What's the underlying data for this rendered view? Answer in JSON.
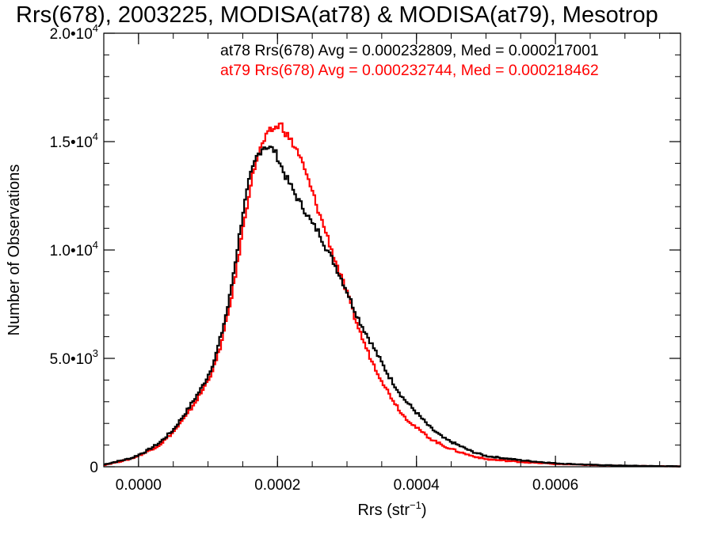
{
  "chart_data": {
    "type": "line",
    "step": true,
    "title": "Rrs(678), 2003225, MODISA(at78) & MODISA(at79), Mesotrop",
    "xlabel": {
      "base": "Rrs (str",
      "sup": "−1",
      "close": ")"
    },
    "ylabel": "Number of Observations",
    "xlim": [
      -5e-05,
      0.00078
    ],
    "ylim": [
      0,
      20000
    ],
    "grid": false,
    "legend_position": "top-right",
    "x_ticks": [
      {
        "value": 0.0,
        "label": "0.0000"
      },
      {
        "value": 0.0002,
        "label": "0.0002"
      },
      {
        "value": 0.0004,
        "label": "0.0004"
      },
      {
        "value": 0.0006,
        "label": "0.0006"
      }
    ],
    "y_ticks": [
      {
        "value": 0,
        "label": "0",
        "base": "",
        "exp": ""
      },
      {
        "value": 5000,
        "label": "",
        "base": "5.0•10",
        "exp": "3"
      },
      {
        "value": 10000,
        "label": "",
        "base": "1.0•10",
        "exp": "4"
      },
      {
        "value": 15000,
        "label": "",
        "base": "1.5•10",
        "exp": "4"
      },
      {
        "value": 20000,
        "label": "",
        "base": "2.0•10",
        "exp": "4"
      }
    ],
    "annotations": [
      {
        "text": "at78 Rrs(678) Avg = 0.000232809, Med = 0.000217001",
        "color": "#000000"
      },
      {
        "text": "at79 Rrs(678) Avg = 0.000232744, Med = 0.000218462",
        "color": "#ff0000"
      }
    ],
    "series": [
      {
        "color": "#000000",
        "x": [
          -5e-05,
          -3e-05,
          -1e-05,
          1e-05,
          3e-05,
          5e-05,
          7e-05,
          9e-05,
          0.0001,
          0.00011,
          0.00012,
          0.00013,
          0.00014,
          0.00015,
          0.00016,
          0.00017,
          0.00018,
          0.00019,
          0.000195,
          0.0002,
          0.00021,
          0.00022,
          0.00023,
          0.00024,
          0.00025,
          0.00026,
          0.00027,
          0.00028,
          0.00029,
          0.0003,
          0.00031,
          0.00032,
          0.00033,
          0.00034,
          0.00035,
          0.00036,
          0.00037,
          0.00038,
          0.0004,
          0.00042,
          0.00044,
          0.00046,
          0.00048,
          0.0005,
          0.00055,
          0.0006,
          0.00065,
          0.0007,
          0.00078
        ],
        "y": [
          100,
          250,
          400,
          700,
          1100,
          1700,
          2600,
          3600,
          4200,
          5000,
          6200,
          7600,
          9600,
          11700,
          13300,
          14300,
          14800,
          14700,
          14600,
          14300,
          13500,
          12900,
          12300,
          11800,
          11200,
          10800,
          10100,
          9500,
          8800,
          8100,
          7300,
          6600,
          6000,
          5400,
          4800,
          4200,
          3700,
          3200,
          2500,
          1800,
          1300,
          1000,
          700,
          500,
          300,
          160,
          90,
          50,
          20
        ]
      },
      {
        "color": "#ff0000",
        "x": [
          -5e-05,
          -3e-05,
          -1e-05,
          1e-05,
          3e-05,
          5e-05,
          7e-05,
          9e-05,
          0.0001,
          0.00011,
          0.00012,
          0.00013,
          0.00014,
          0.00015,
          0.00016,
          0.00017,
          0.00018,
          0.00019,
          0.0002,
          0.000205,
          0.00021,
          0.00022,
          0.00023,
          0.00024,
          0.00025,
          0.00026,
          0.00027,
          0.00028,
          0.00029,
          0.0003,
          0.00031,
          0.00032,
          0.00033,
          0.00034,
          0.00035,
          0.00036,
          0.00037,
          0.00038,
          0.0004,
          0.00042,
          0.00044,
          0.00046,
          0.00048,
          0.0005,
          0.00055,
          0.0006,
          0.00065,
          0.0007,
          0.00078
        ],
        "y": [
          80,
          220,
          380,
          650,
          1000,
          1600,
          2400,
          3400,
          4000,
          4700,
          5800,
          7200,
          8900,
          10900,
          12800,
          14200,
          15000,
          15500,
          15700,
          15800,
          15500,
          15000,
          14500,
          13600,
          12700,
          11700,
          10800,
          9800,
          8900,
          8000,
          7000,
          6100,
          5300,
          4600,
          4000,
          3400,
          2900,
          2400,
          1800,
          1300,
          950,
          700,
          500,
          350,
          220,
          130,
          80,
          40,
          20
        ]
      }
    ]
  }
}
